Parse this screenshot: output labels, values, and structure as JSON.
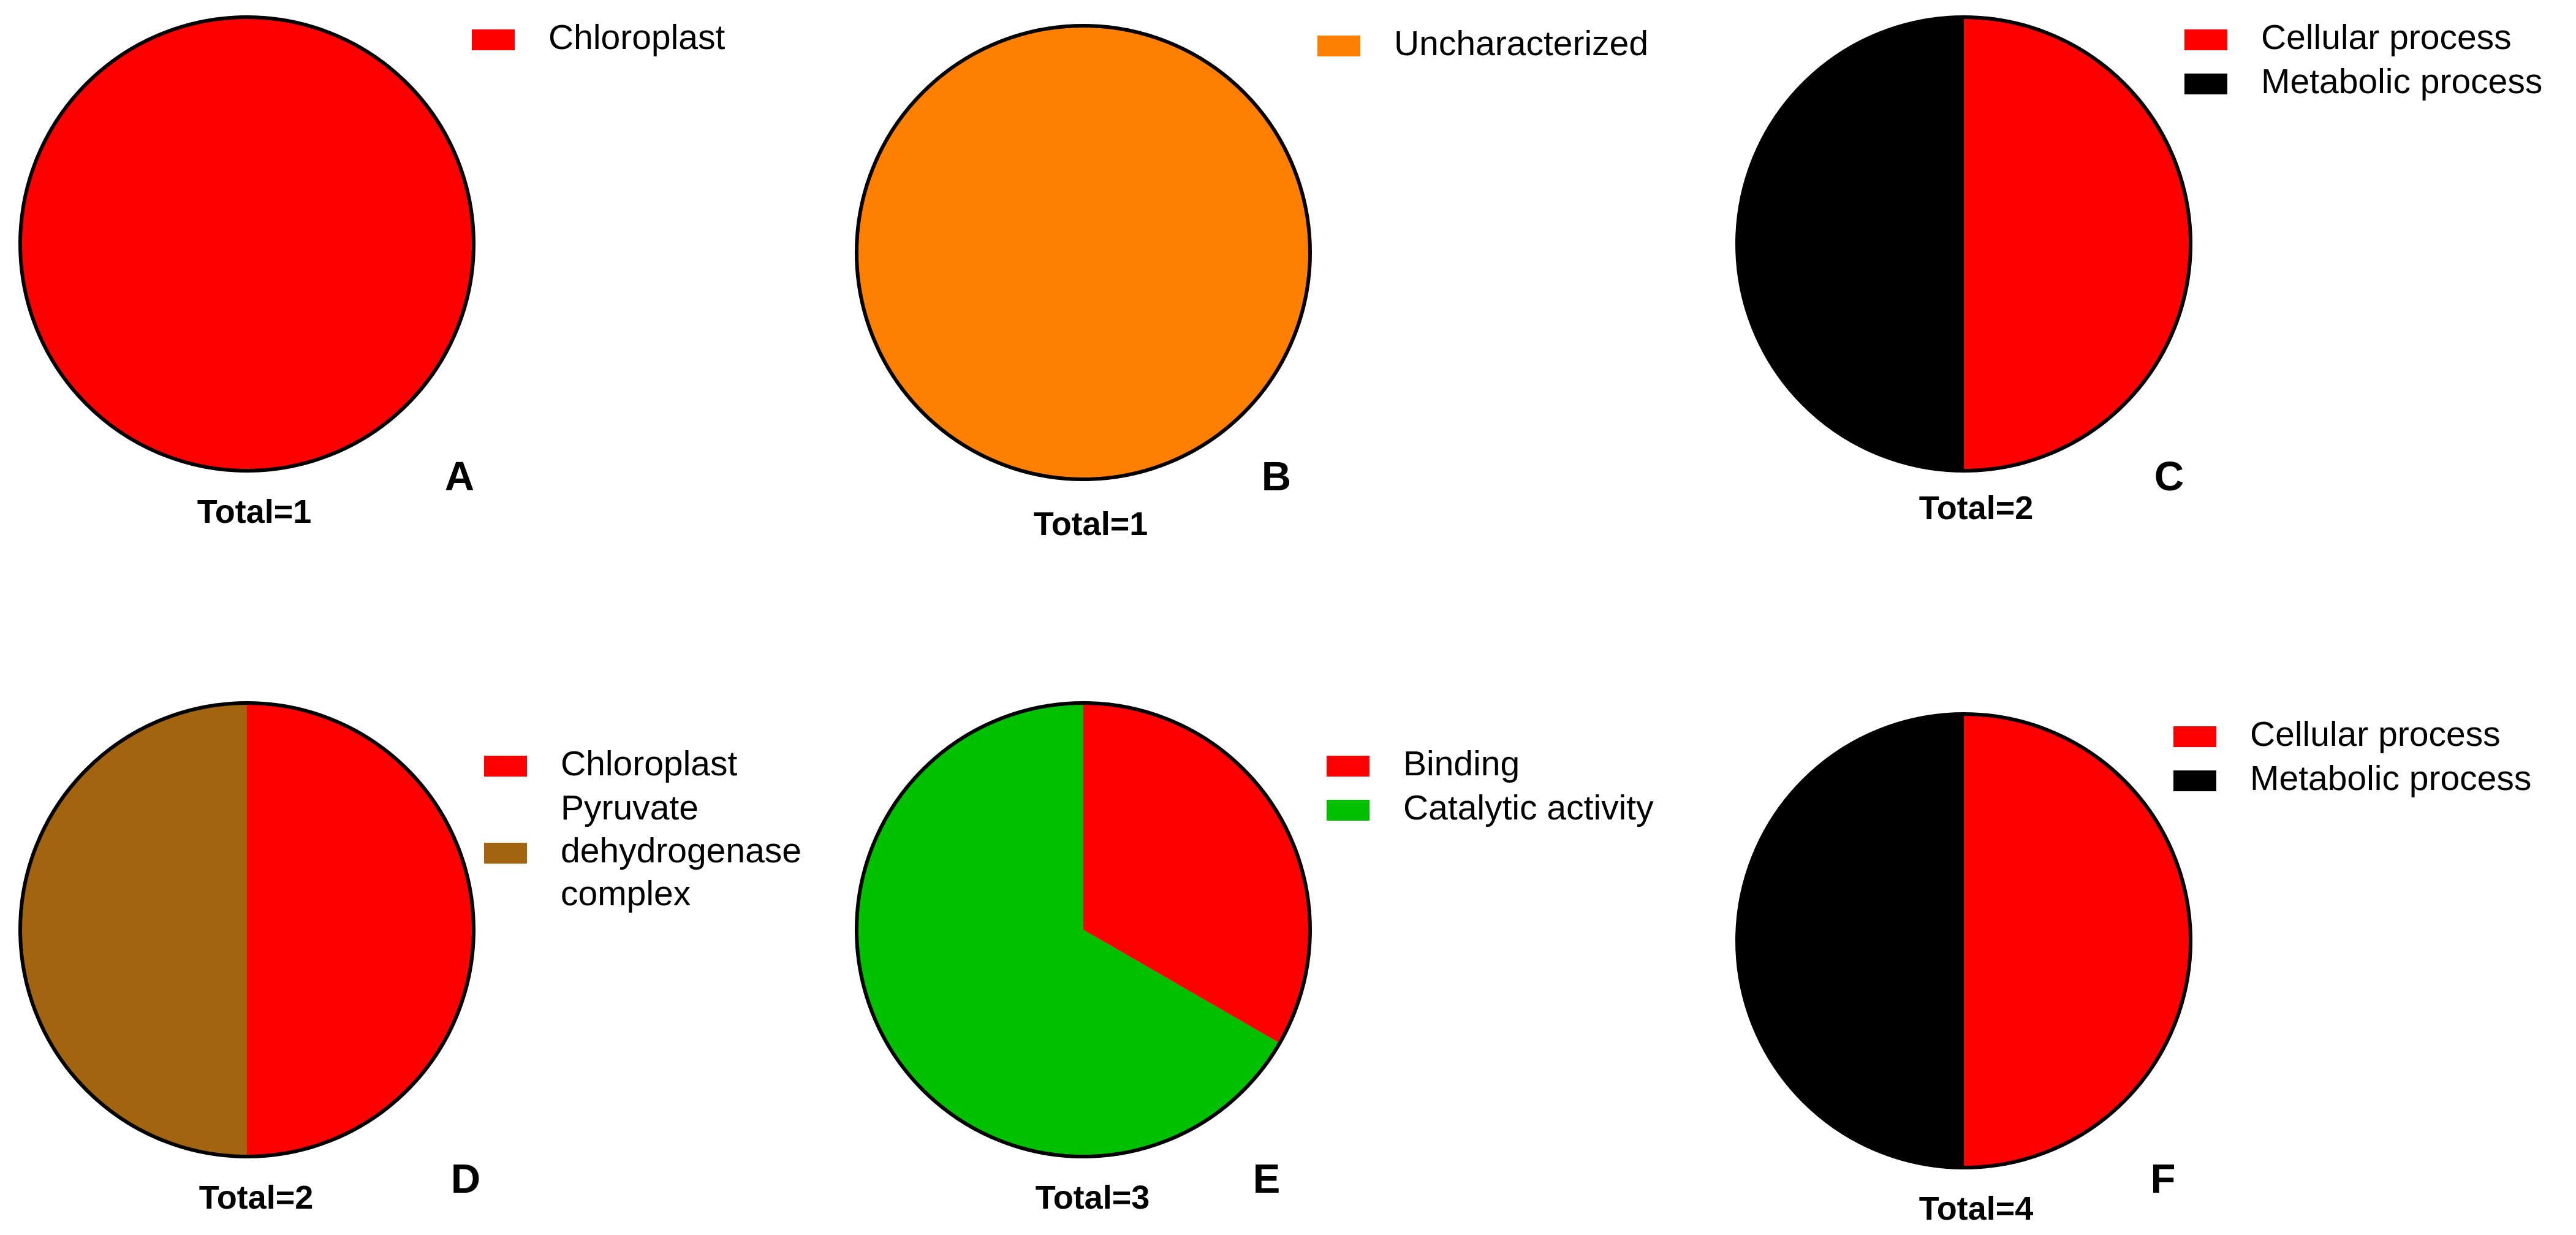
{
  "chart_data": [
    {
      "type": "pie",
      "panel_label": "A",
      "total_label": "Total=1",
      "slices": [
        {
          "label": "Chloroplast",
          "value": 1,
          "color": "#ff0000"
        }
      ],
      "legend_placement": "top-right"
    },
    {
      "type": "pie",
      "panel_label": "B",
      "total_label": "Total=1",
      "slices": [
        {
          "label": "Uncharacterized",
          "value": 1,
          "color": "#ff8000"
        }
      ],
      "legend_placement": "top-right"
    },
    {
      "type": "pie",
      "panel_label": "C",
      "total_label": "Total=2",
      "slices": [
        {
          "label": "Cellular process",
          "value": 1,
          "color": "#ff0000"
        },
        {
          "label": "Metabolic process",
          "value": 1,
          "color": "#000000"
        }
      ],
      "legend_placement": "top-right"
    },
    {
      "type": "pie",
      "panel_label": "D",
      "total_label": "Total=2",
      "slices": [
        {
          "label": "Chloroplast",
          "value": 1,
          "color": "#ff0000"
        },
        {
          "label": "Pyruvate dehydrogenase complex",
          "label_lines": [
            "Pyruvate",
            "dehydrogenase",
            "complex"
          ],
          "value": 1,
          "color": "#a3640f"
        }
      ],
      "legend_placement": "right"
    },
    {
      "type": "pie",
      "panel_label": "E",
      "total_label": "Total=3",
      "slices": [
        {
          "label": "Binding",
          "value": 1,
          "color": "#ff0000"
        },
        {
          "label": "Catalytic activity",
          "value": 2,
          "color": "#00c000"
        }
      ],
      "legend_placement": "top-right"
    },
    {
      "type": "pie",
      "panel_label": "F",
      "total_label": "Total=4",
      "slices": [
        {
          "label": "Cellular process",
          "value": 2,
          "color": "#ff0000"
        },
        {
          "label": "Metabolic process",
          "value": 2,
          "color": "#000000"
        }
      ],
      "legend_placement": "top-right"
    }
  ]
}
